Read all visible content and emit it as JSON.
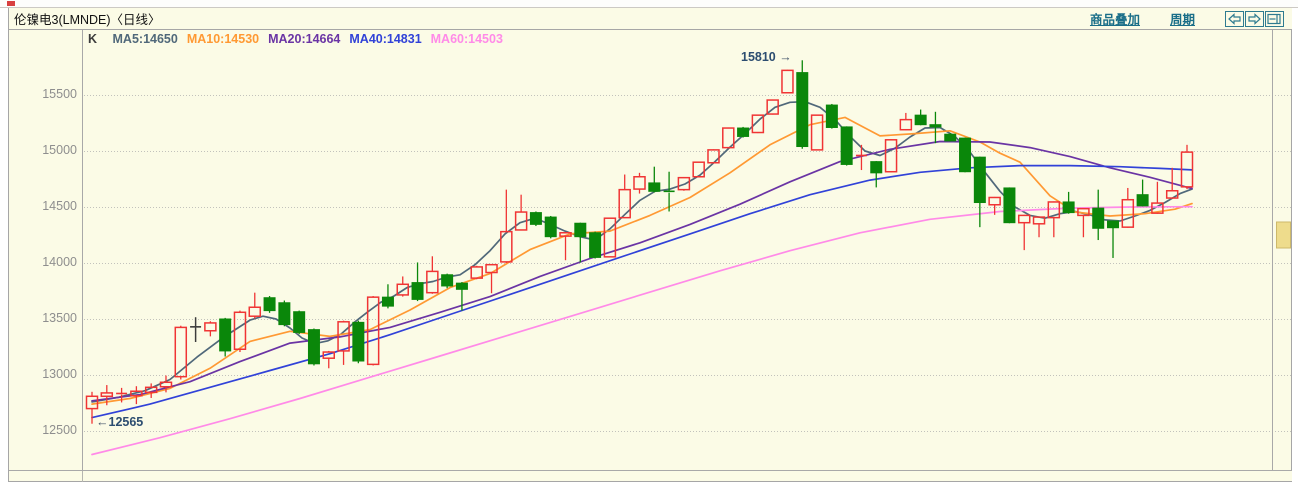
{
  "window": {
    "title": "伦镍电3(LMNDE)〈日线〉",
    "toolbar": {
      "overlay_link": "商品叠加",
      "period_link": "周期",
      "icons": [
        "arrow-left",
        "arrow-right",
        "split-window"
      ]
    }
  },
  "legend": {
    "k_label": "K",
    "items": [
      {
        "label": "MA5:14650",
        "color": "#50687a"
      },
      {
        "label": "MA10:14530",
        "color": "#ff9933"
      },
      {
        "label": "MA20:14664",
        "color": "#6a34a4"
      },
      {
        "label": "MA40:14831",
        "color": "#3142d8"
      },
      {
        "label": "MA60:14503",
        "color": "#ff8ae8"
      }
    ]
  },
  "annotations": {
    "high_text": "15810",
    "high_arrow": "→",
    "low_arrow": "←",
    "low_text": "12565"
  },
  "colors": {
    "background": "#fbfbe6",
    "up_candle": "#f03434",
    "down_candle": "#0a870a",
    "doji_black": "#3c3c3c",
    "grid": "#c2c2bc",
    "border": "#a6a6a6",
    "link": "#1a6e88",
    "icon": "#2e7b90",
    "annotation": "#2c4d70",
    "scroll_thumb": "#eedc8c"
  },
  "chart_data": {
    "type": "candlestick",
    "title": "伦镍电3(LMNDE) 日线 (daily K-line)",
    "y_ticks": [
      15500,
      15000,
      14500,
      14000,
      13500,
      13000,
      12500
    ],
    "ylim": [
      12150,
      16080
    ],
    "grid": "horizontal-dotted",
    "annotated_high": 15810,
    "annotated_low": 12565,
    "candles_format": "[open, high, low, close, optional-flag]",
    "candles": [
      [
        12700,
        12850,
        12565,
        12810
      ],
      [
        12810,
        12910,
        12730,
        12840
      ],
      [
        12825,
        12885,
        12755,
        12835
      ],
      [
        12815,
        12900,
        12740,
        12855
      ],
      [
        12845,
        12925,
        12795,
        12890
      ],
      [
        12895,
        12995,
        12845,
        12935
      ],
      [
        12985,
        13440,
        12960,
        13425
      ],
      [
        13420,
        13515,
        13295,
        13430,
        "black"
      ],
      [
        13395,
        13480,
        13345,
        13465
      ],
      [
        13500,
        13510,
        13165,
        13215
      ],
      [
        13230,
        13575,
        13205,
        13560
      ],
      [
        13525,
        13735,
        13505,
        13605
      ],
      [
        13690,
        13705,
        13555,
        13575
      ],
      [
        13645,
        13665,
        13435,
        13450
      ],
      [
        13565,
        13575,
        13365,
        13380
      ],
      [
        13405,
        13415,
        13085,
        13100
      ],
      [
        13150,
        13215,
        13060,
        13205
      ],
      [
        13215,
        13485,
        13090,
        13475
      ],
      [
        13470,
        13485,
        13105,
        13125
      ],
      [
        13095,
        13705,
        13085,
        13695
      ],
      [
        13695,
        13810,
        13595,
        13615
      ],
      [
        13715,
        13880,
        13700,
        13810
      ],
      [
        13825,
        14005,
        13660,
        13675
      ],
      [
        13735,
        14060,
        13725,
        13925
      ],
      [
        13895,
        13905,
        13775,
        13795
      ],
      [
        13820,
        13830,
        13575,
        13765
      ],
      [
        13865,
        13975,
        13855,
        13965
      ],
      [
        13915,
        13990,
        13730,
        13985
      ],
      [
        14010,
        14655,
        14000,
        14280
      ],
      [
        14295,
        14610,
        14290,
        14455
      ],
      [
        14450,
        14460,
        14330,
        14345
      ],
      [
        14410,
        14420,
        14220,
        14235
      ],
      [
        14240,
        14275,
        14025,
        14270
      ],
      [
        14355,
        14360,
        14005,
        14235
      ],
      [
        14270,
        14280,
        14040,
        14050
      ],
      [
        14055,
        14405,
        14050,
        14400
      ],
      [
        14405,
        14790,
        14400,
        14655
      ],
      [
        14660,
        14805,
        14620,
        14770
      ],
      [
        14715,
        14860,
        14630,
        14640
      ],
      [
        14640,
        14815,
        14460,
        14628
      ],
      [
        14655,
        14768,
        14645,
        14762
      ],
      [
        14770,
        14905,
        14765,
        14900
      ],
      [
        14895,
        15015,
        14890,
        15010
      ],
      [
        15030,
        15210,
        15025,
        15205
      ],
      [
        15205,
        15215,
        15120,
        15130
      ],
      [
        15165,
        15325,
        15160,
        15320
      ],
      [
        15330,
        15460,
        15325,
        15455
      ],
      [
        15520,
        15725,
        15515,
        15720
      ],
      [
        15700,
        15810,
        15020,
        15040
      ],
      [
        15010,
        15325,
        15005,
        15320
      ],
      [
        15410,
        15420,
        15200,
        15210
      ],
      [
        15215,
        15220,
        14870,
        14880
      ],
      [
        14950,
        15055,
        14830,
        14960
      ],
      [
        14905,
        14910,
        14675,
        14805
      ],
      [
        14815,
        15105,
        14810,
        15100
      ],
      [
        15190,
        15340,
        15185,
        15280
      ],
      [
        15320,
        15370,
        15230,
        15235
      ],
      [
        15235,
        15350,
        15070,
        15215
      ],
      [
        15150,
        15160,
        15085,
        15090
      ],
      [
        15115,
        15120,
        14810,
        14815
      ],
      [
        14945,
        14950,
        14320,
        14540
      ],
      [
        14520,
        14590,
        14430,
        14585
      ],
      [
        14670,
        14675,
        14355,
        14360
      ],
      [
        14360,
        14430,
        14115,
        14425
      ],
      [
        14350,
        14415,
        14230,
        14410
      ],
      [
        14405,
        14550,
        14230,
        14545
      ],
      [
        14545,
        14635,
        14440,
        14450
      ],
      [
        14425,
        14490,
        14230,
        14485
      ],
      [
        14490,
        14655,
        14205,
        14310
      ],
      [
        14375,
        14380,
        14045,
        14315
      ],
      [
        14320,
        14670,
        14315,
        14565
      ],
      [
        14610,
        14745,
        14505,
        14510
      ],
      [
        14445,
        14725,
        14440,
        14535
      ],
      [
        14580,
        14850,
        14575,
        14645
      ],
      [
        14680,
        15055,
        14660,
        14990
      ]
    ],
    "moving_averages": [
      {
        "name": "MA5",
        "value": 14650,
        "color": "#50687a",
        "points": [
          [
            92,
            12760
          ],
          [
            118,
            12800
          ],
          [
            145,
            12860
          ],
          [
            170,
            12960
          ],
          [
            197,
            13160
          ],
          [
            224,
            13340
          ],
          [
            250,
            13490
          ],
          [
            263,
            13525
          ],
          [
            276,
            13500
          ],
          [
            290,
            13420
          ],
          [
            302,
            13330
          ],
          [
            315,
            13280
          ],
          [
            328,
            13305
          ],
          [
            341,
            13365
          ],
          [
            355,
            13475
          ],
          [
            368,
            13565
          ],
          [
            381,
            13650
          ],
          [
            394,
            13705
          ],
          [
            407,
            13780
          ],
          [
            420,
            13815
          ],
          [
            433,
            13835
          ],
          [
            447,
            13875
          ],
          [
            460,
            13895
          ],
          [
            475,
            13985
          ],
          [
            490,
            14110
          ],
          [
            505,
            14260
          ],
          [
            520,
            14360
          ],
          [
            535,
            14400
          ],
          [
            550,
            14345
          ],
          [
            565,
            14285
          ],
          [
            580,
            14235
          ],
          [
            595,
            14205
          ],
          [
            610,
            14305
          ],
          [
            625,
            14435
          ],
          [
            640,
            14560
          ],
          [
            655,
            14640
          ],
          [
            670,
            14660
          ],
          [
            685,
            14705
          ],
          [
            700,
            14785
          ],
          [
            715,
            14905
          ],
          [
            730,
            15035
          ],
          [
            745,
            15155
          ],
          [
            760,
            15285
          ],
          [
            775,
            15390
          ],
          [
            790,
            15435
          ],
          [
            805,
            15440
          ],
          [
            820,
            15390
          ],
          [
            835,
            15280
          ],
          [
            850,
            15130
          ],
          [
            865,
            15000
          ],
          [
            880,
            14960
          ],
          [
            895,
            15025
          ],
          [
            910,
            15125
          ],
          [
            925,
            15205
          ],
          [
            940,
            15210
          ],
          [
            955,
            15130
          ],
          [
            970,
            14990
          ],
          [
            985,
            14810
          ],
          [
            1000,
            14640
          ],
          [
            1015,
            14500
          ],
          [
            1030,
            14425
          ],
          [
            1045,
            14400
          ],
          [
            1060,
            14440
          ],
          [
            1075,
            14460
          ],
          [
            1090,
            14430
          ],
          [
            1105,
            14385
          ],
          [
            1120,
            14375
          ],
          [
            1135,
            14420
          ],
          [
            1150,
            14470
          ],
          [
            1165,
            14540
          ],
          [
            1180,
            14620
          ],
          [
            1192,
            14660
          ]
        ]
      },
      {
        "name": "MA10",
        "value": 14530,
        "color": "#ff9933",
        "points": [
          [
            92,
            12740
          ],
          [
            130,
            12790
          ],
          [
            170,
            12880
          ],
          [
            210,
            13060
          ],
          [
            250,
            13300
          ],
          [
            290,
            13390
          ],
          [
            330,
            13345
          ],
          [
            370,
            13405
          ],
          [
            410,
            13580
          ],
          [
            450,
            13780
          ],
          [
            490,
            13905
          ],
          [
            530,
            14120
          ],
          [
            570,
            14260
          ],
          [
            610,
            14285
          ],
          [
            650,
            14425
          ],
          [
            690,
            14585
          ],
          [
            730,
            14805
          ],
          [
            770,
            15055
          ],
          [
            810,
            15235
          ],
          [
            845,
            15300
          ],
          [
            880,
            15135
          ],
          [
            915,
            15155
          ],
          [
            950,
            15180
          ],
          [
            980,
            15080
          ],
          [
            1000,
            14980
          ],
          [
            1020,
            14900
          ],
          [
            1050,
            14600
          ],
          [
            1075,
            14455
          ],
          [
            1110,
            14420
          ],
          [
            1145,
            14440
          ],
          [
            1175,
            14480
          ],
          [
            1192,
            14530
          ]
        ]
      },
      {
        "name": "MA20",
        "value": 14664,
        "color": "#6a34a4",
        "points": [
          [
            92,
            12770
          ],
          [
            140,
            12825
          ],
          [
            190,
            12940
          ],
          [
            240,
            13120
          ],
          [
            290,
            13285
          ],
          [
            340,
            13340
          ],
          [
            390,
            13425
          ],
          [
            440,
            13560
          ],
          [
            490,
            13700
          ],
          [
            540,
            13880
          ],
          [
            590,
            14040
          ],
          [
            640,
            14180
          ],
          [
            690,
            14345
          ],
          [
            740,
            14525
          ],
          [
            790,
            14725
          ],
          [
            840,
            14905
          ],
          [
            890,
            15015
          ],
          [
            940,
            15085
          ],
          [
            990,
            15080
          ],
          [
            1030,
            15030
          ],
          [
            1070,
            14950
          ],
          [
            1110,
            14850
          ],
          [
            1150,
            14765
          ],
          [
            1192,
            14664
          ]
        ]
      },
      {
        "name": "MA40",
        "value": 14831,
        "color": "#3142d8",
        "points": [
          [
            92,
            12620
          ],
          [
            150,
            12740
          ],
          [
            210,
            12890
          ],
          [
            270,
            13040
          ],
          [
            330,
            13190
          ],
          [
            390,
            13360
          ],
          [
            450,
            13540
          ],
          [
            510,
            13720
          ],
          [
            570,
            13900
          ],
          [
            630,
            14080
          ],
          [
            690,
            14260
          ],
          [
            750,
            14440
          ],
          [
            810,
            14610
          ],
          [
            870,
            14740
          ],
          [
            920,
            14810
          ],
          [
            970,
            14850
          ],
          [
            1020,
            14870
          ],
          [
            1070,
            14870
          ],
          [
            1120,
            14860
          ],
          [
            1160,
            14845
          ],
          [
            1192,
            14831
          ]
        ]
      },
      {
        "name": "MA60",
        "value": 14503,
        "color": "#ff8ae8",
        "points": [
          [
            92,
            12290
          ],
          [
            160,
            12440
          ],
          [
            230,
            12610
          ],
          [
            300,
            12790
          ],
          [
            370,
            12980
          ],
          [
            440,
            13170
          ],
          [
            510,
            13360
          ],
          [
            580,
            13550
          ],
          [
            650,
            13740
          ],
          [
            720,
            13930
          ],
          [
            790,
            14110
          ],
          [
            860,
            14270
          ],
          [
            930,
            14390
          ],
          [
            1000,
            14460
          ],
          [
            1070,
            14490
          ],
          [
            1130,
            14500
          ],
          [
            1192,
            14503
          ]
        ]
      }
    ]
  }
}
